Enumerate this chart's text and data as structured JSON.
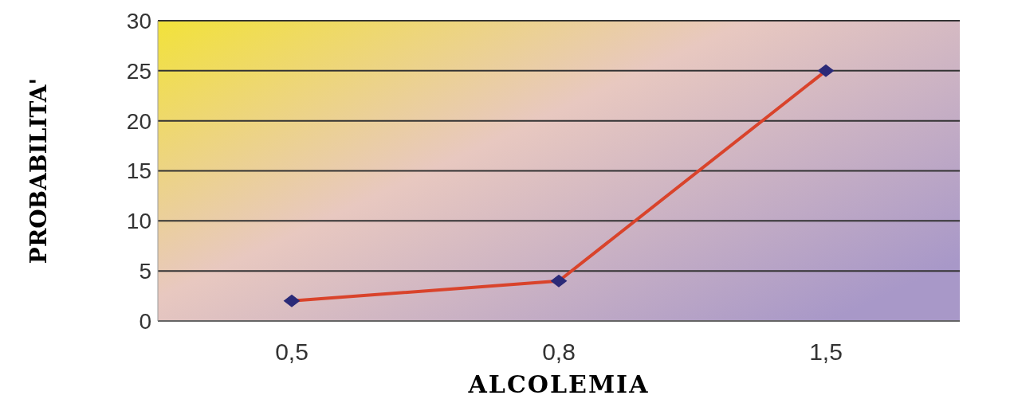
{
  "chart_data": {
    "type": "line",
    "xlabel": "ALCOLEMIA",
    "ylabel": "PROBABILITA'",
    "categories": [
      "0,5",
      "0,8",
      "1,5"
    ],
    "series": [
      {
        "color": "#d9432b",
        "values": [
          2,
          4,
          25
        ]
      }
    ],
    "ylim": [
      0,
      30
    ],
    "yticks": [
      0,
      5,
      10,
      15,
      20,
      25,
      30
    ],
    "grid": "y",
    "marker": "diamond",
    "line_style": "solid"
  }
}
